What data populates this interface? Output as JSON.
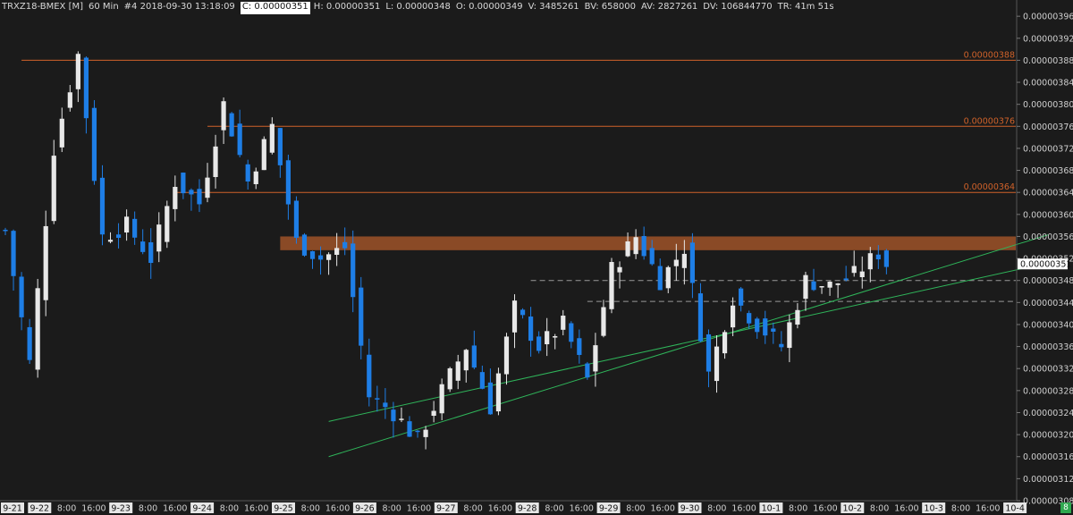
{
  "header": {
    "symbol": "TRXZ18-BMEX [M]",
    "interval": "60 Min",
    "bar_info": "#4 2018-09-30 13:18:09",
    "close": "C: 0.00000351",
    "high": "H: 0.00000351",
    "low": "L: 0.00000348",
    "open": "O: 0.00000349",
    "volume": "V: 3485261",
    "buy_volume": "BV: 658000",
    "ask_volume": "AV: 2827261",
    "delta_volume": "DV: 106844770",
    "time_remaining": "TR: 41m 51s"
  },
  "badge": "8",
  "colors": {
    "background": "#1b1b1b",
    "up_candle": "#e8e8e8",
    "down_candle": "#1e7ee6",
    "resistance_line": "#d0622a",
    "zone": "#8a4a26",
    "trendline": "#2fb55a",
    "dashed": "#9a9a9a",
    "axis_text": "#cfcfcf"
  },
  "chart_data": {
    "type": "candlestick",
    "title": "",
    "ylabel": "",
    "xlabel": "",
    "ylim": [
      3.08e-06,
      3.97e-06
    ],
    "y_ticks": [
      "0.00000396",
      "0.00000392",
      "0.00000388",
      "0.00000384",
      "0.00000380",
      "0.00000376",
      "0.00000372",
      "0.00000368",
      "0.00000364",
      "0.00000360",
      "0.00000356",
      "0.00000352",
      "0.00000348",
      "0.00000344",
      "0.00000340",
      "0.00000336",
      "0.00000332",
      "0.00000328",
      "0.00000324",
      "0.00000320",
      "0.00000316",
      "0.00000312",
      "0.00000308"
    ],
    "x_ticks": [
      "9-21",
      "9-22",
      "8:00",
      "16:00",
      "9-23",
      "8:00",
      "16:00",
      "9-24",
      "8:00",
      "16:00",
      "9-25",
      "8:00",
      "16:00",
      "9-26",
      "8:00",
      "16:00",
      "9-27",
      "8:00",
      "16:00",
      "9-28",
      "8:00",
      "16:00",
      "9-29",
      "8:00",
      "16:00",
      "9-30",
      "8:00",
      "16:00",
      "10-1",
      "8:00",
      "16:00",
      "10-2",
      "8:00",
      "16:00",
      "10-3",
      "8:00",
      "16:00",
      "10-4"
    ],
    "current_price": "0.00000351",
    "price_points": [
      [
        0,
        3.57e-06
      ],
      [
        3,
        3.33e-06
      ],
      [
        6,
        3.72e-06
      ],
      [
        9,
        3.89e-06
      ],
      [
        12,
        3.56e-06
      ],
      [
        15,
        3.58e-06
      ],
      [
        18,
        3.52e-06
      ],
      [
        21,
        3.66e-06
      ],
      [
        24,
        3.62e-06
      ],
      [
        27,
        3.8e-06
      ],
      [
        30,
        3.66e-06
      ],
      [
        33,
        3.76e-06
      ],
      [
        36,
        3.55e-06
      ],
      [
        39,
        3.52e-06
      ],
      [
        42,
        3.54e-06
      ],
      [
        45,
        3.27e-06
      ],
      [
        48,
        3.24e-06
      ],
      [
        51,
        3.19e-06
      ],
      [
        54,
        3.28e-06
      ],
      [
        57,
        3.36e-06
      ],
      [
        60,
        3.25e-06
      ],
      [
        63,
        3.43e-06
      ],
      [
        66,
        3.36e-06
      ],
      [
        69,
        3.4e-06
      ],
      [
        72,
        3.3e-06
      ],
      [
        75,
        3.5e-06
      ],
      [
        78,
        3.56e-06
      ],
      [
        81,
        3.48e-06
      ],
      [
        84,
        3.54e-06
      ],
      [
        87,
        3.31e-06
      ],
      [
        90,
        3.45e-06
      ],
      [
        93,
        3.4e-06
      ],
      [
        96,
        3.36e-06
      ],
      [
        99,
        3.48e-06
      ],
      [
        102,
        3.47e-06
      ],
      [
        105,
        3.49e-06
      ],
      [
        108,
        3.53e-06
      ],
      [
        109,
        3.51e-06
      ]
    ],
    "resistance_levels": [
      {
        "label": "0.00000388",
        "value": 3.88e-06,
        "start": 2
      },
      {
        "label": "0.00000376",
        "value": 3.76e-06,
        "start": 25
      },
      {
        "label": "0.00000364",
        "value": 3.64e-06,
        "start": 21
      }
    ],
    "zone": {
      "low": 3.535e-06,
      "high": 3.56e-06,
      "start": 34
    },
    "dashed_levels": [
      {
        "value": 3.48e-06,
        "start": 65
      },
      {
        "value": 3.442e-06,
        "start": 72
      }
    ],
    "trendlines": [
      {
        "x1": 40,
        "y1": 3.16e-06,
        "x2": 129,
        "y2": 3.563e-06
      },
      {
        "x1": 40,
        "y1": 3.224e-06,
        "x2": 129,
        "y2": 3.512e-06
      }
    ],
    "grid": false,
    "legend": "none"
  }
}
